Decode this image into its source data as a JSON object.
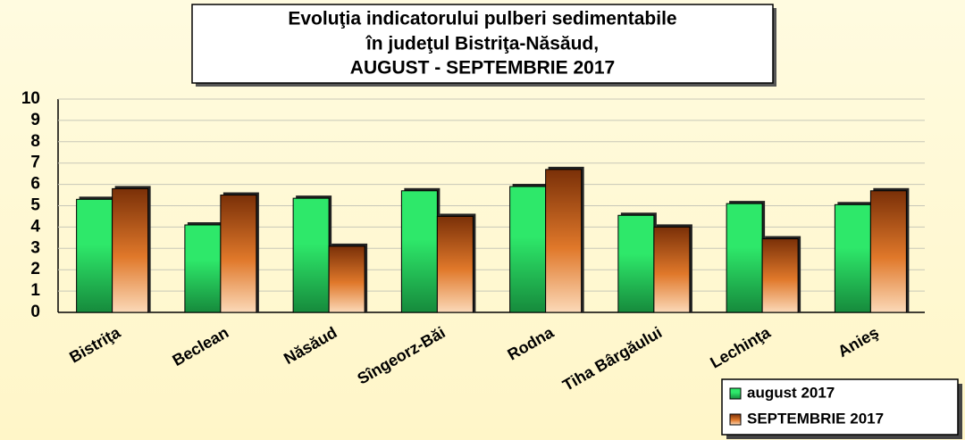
{
  "chart_data": {
    "type": "bar",
    "title": [
      "Evoluţia indicatorului pulberi sedimentabile",
      "în judeţul Bistriţa-Năsăud,",
      "AUGUST  - SEPTEMBRIE 2017"
    ],
    "categories": [
      "Bistriţa",
      "Beclean",
      "Năsăud",
      "Sîngeorz-Băi",
      "Rodna",
      "Tiha Bârgăului",
      "Lechinţa",
      "Anieş"
    ],
    "series": [
      {
        "name": "august 2017",
        "color": "#2ee86a",
        "values": [
          5.3,
          4.1,
          5.35,
          5.7,
          5.9,
          4.55,
          5.1,
          5.05
        ]
      },
      {
        "name": "SEPTEMBRIE 2017",
        "color": "#7a3008",
        "values": [
          5.8,
          5.5,
          3.1,
          4.5,
          6.7,
          4.0,
          3.45,
          5.7
        ]
      }
    ],
    "ylim": [
      0,
      10
    ],
    "yticks": [
      0,
      1,
      2,
      3,
      4,
      5,
      6,
      7,
      8,
      9,
      10
    ],
    "grid": true
  }
}
